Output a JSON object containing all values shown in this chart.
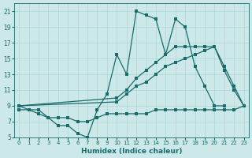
{
  "xlabel": "Humidex (Indice chaleur)",
  "bg_color": "#cce8e8",
  "line_color": "#1a6b6b",
  "grid_color": "#aed4d4",
  "xlim": [
    -0.5,
    23.5
  ],
  "ylim": [
    5,
    22
  ],
  "xticks": [
    0,
    1,
    2,
    3,
    4,
    5,
    6,
    7,
    8,
    9,
    10,
    11,
    12,
    13,
    14,
    15,
    16,
    17,
    18,
    19,
    20,
    21,
    22,
    23
  ],
  "yticks": [
    5,
    7,
    9,
    11,
    13,
    15,
    17,
    19,
    21
  ],
  "line1_x": [
    0,
    1,
    2,
    3,
    4,
    5,
    6,
    7,
    8,
    9,
    10,
    11,
    12,
    13,
    14,
    15,
    16,
    17,
    18,
    19,
    20,
    21,
    22,
    23
  ],
  "line1_y": [
    9,
    8.5,
    8.5,
    7.5,
    6.5,
    6.5,
    5.5,
    5,
    8.5,
    10.5,
    15.5,
    13,
    21,
    20.5,
    20,
    15.5,
    20,
    19,
    14,
    11.5,
    9,
    9,
    null,
    null
  ],
  "line2_x": [
    0,
    10,
    11,
    12,
    13,
    14,
    15,
    16,
    17,
    18,
    19,
    20,
    21,
    22,
    23
  ],
  "line2_y": [
    9,
    10,
    11,
    12.5,
    13.5,
    14.5,
    15.5,
    16.5,
    16.5,
    16.5,
    16.5,
    16.5,
    14,
    11.5,
    9
  ],
  "line3_x": [
    0,
    10,
    11,
    12,
    13,
    14,
    15,
    16,
    17,
    18,
    19,
    20,
    21,
    22,
    23
  ],
  "line3_y": [
    9,
    9.5,
    10.5,
    11.5,
    12,
    13,
    14,
    14.5,
    15,
    15.5,
    16,
    16.5,
    13.5,
    11,
    9
  ],
  "line4_x": [
    0,
    1,
    2,
    3,
    4,
    5,
    6,
    7,
    8,
    9,
    10,
    11,
    12,
    13,
    14,
    15,
    16,
    17,
    18,
    19,
    20,
    21,
    22,
    23
  ],
  "line4_y": [
    8.5,
    8.5,
    8,
    7.5,
    7.5,
    7.5,
    7,
    7,
    7.5,
    8,
    8,
    8,
    8,
    8,
    8.5,
    8.5,
    8.5,
    8.5,
    8.5,
    8.5,
    8.5,
    8.5,
    8.5,
    9
  ]
}
